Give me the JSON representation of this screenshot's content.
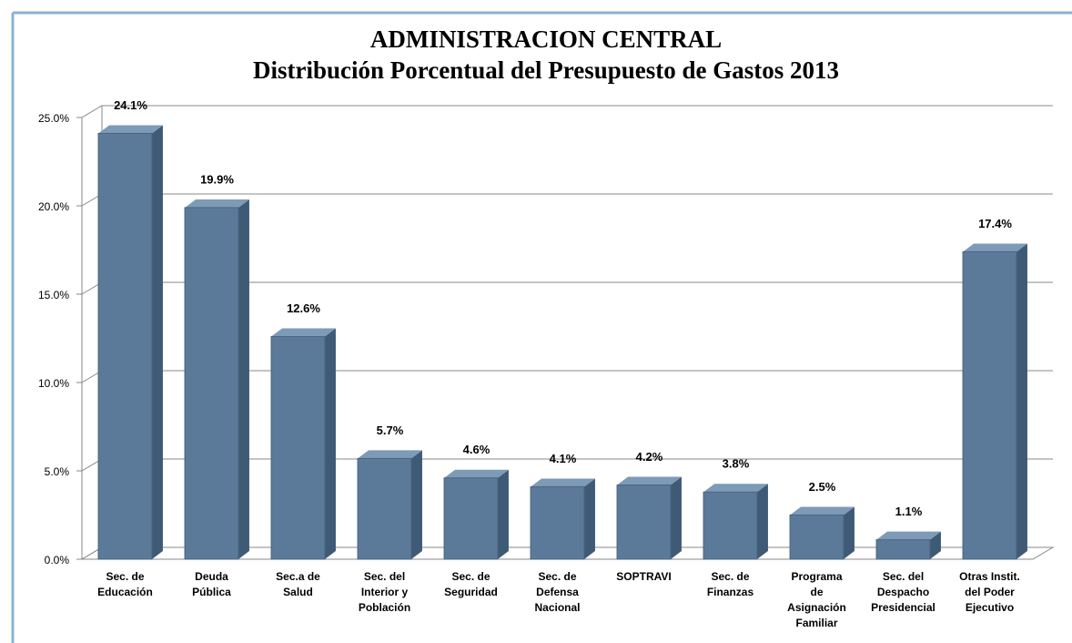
{
  "chart_data": {
    "type": "bar",
    "title": "ADMINISTRACION CENTRAL",
    "subtitle": "Distribución Porcentual del Presupuesto de Gastos 2013",
    "categories": [
      [
        "Sec. de",
        "Educación"
      ],
      [
        "Deuda",
        "Pública"
      ],
      [
        "Sec.a de",
        "Salud"
      ],
      [
        "Sec. del",
        "Interior y",
        "Población"
      ],
      [
        "Sec. de",
        "Seguridad"
      ],
      [
        "Sec. de",
        "Defensa",
        "Nacional"
      ],
      [
        "SOPTRAVI"
      ],
      [
        "Sec. de",
        "Finanzas"
      ],
      [
        "Programa",
        "de",
        "Asignación",
        "Familiar"
      ],
      [
        "Sec. del",
        "Despacho",
        "Presidencial"
      ],
      [
        "Otras Instit.",
        "del Poder",
        "Ejecutivo"
      ]
    ],
    "values": [
      24.1,
      19.9,
      12.6,
      5.7,
      4.6,
      4.1,
      4.2,
      3.8,
      2.5,
      1.1,
      17.4
    ],
    "value_labels": [
      "24.1%",
      "19.9%",
      "12.6%",
      "5.7%",
      "4.6%",
      "4.1%",
      "4.2%",
      "3.8%",
      "2.5%",
      "1.1%",
      "17.4%"
    ],
    "color": "#5b7a9a",
    "ylim": [
      0,
      25
    ],
    "yticks": [
      {
        "value": 0,
        "label": "0.0%"
      },
      {
        "value": 5,
        "label": "5.0%"
      },
      {
        "value": 10,
        "label": "10.0%"
      },
      {
        "value": 15,
        "label": "15.0%"
      },
      {
        "value": 20,
        "label": "20.0%"
      },
      {
        "value": 25,
        "label": "25.0%"
      }
    ],
    "grid": true
  }
}
